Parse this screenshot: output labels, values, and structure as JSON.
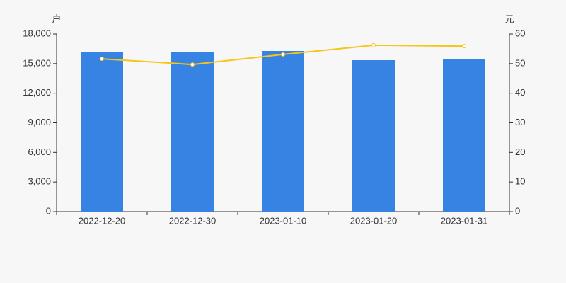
{
  "chart_data": {
    "type": "bar",
    "y_label": "户",
    "y2_label": "元",
    "categories": [
      "2022-12-20",
      "2022-12-30",
      "2023-01-10",
      "2023-01-20",
      "2023-01-31"
    ],
    "series": [
      {
        "type": "bar",
        "color": "#3683e3",
        "values": [
          16207,
          16135,
          16279,
          15347,
          15490
        ]
      },
      {
        "type": "line",
        "axis": "y2",
        "color": "#f5c518",
        "values": [
          51.6,
          49.7,
          53.1,
          56.2,
          55.9
        ]
      }
    ],
    "ylim": [
      0,
      18000
    ],
    "yticks": [
      0,
      {
        "value": 3000,
        "label": "3,000"
      },
      {
        "value": 6000,
        "label": "6,000"
      },
      {
        "value": 9000,
        "label": "9,000"
      },
      {
        "value": 12000,
        "label": "12,000"
      },
      {
        "value": 15000,
        "label": "15,000"
      },
      {
        "value": 18000,
        "label": "18,000"
      }
    ],
    "y2lim": [
      0,
      60
    ],
    "y2ticks": [
      0,
      10,
      20,
      30,
      40,
      50,
      60
    ]
  }
}
